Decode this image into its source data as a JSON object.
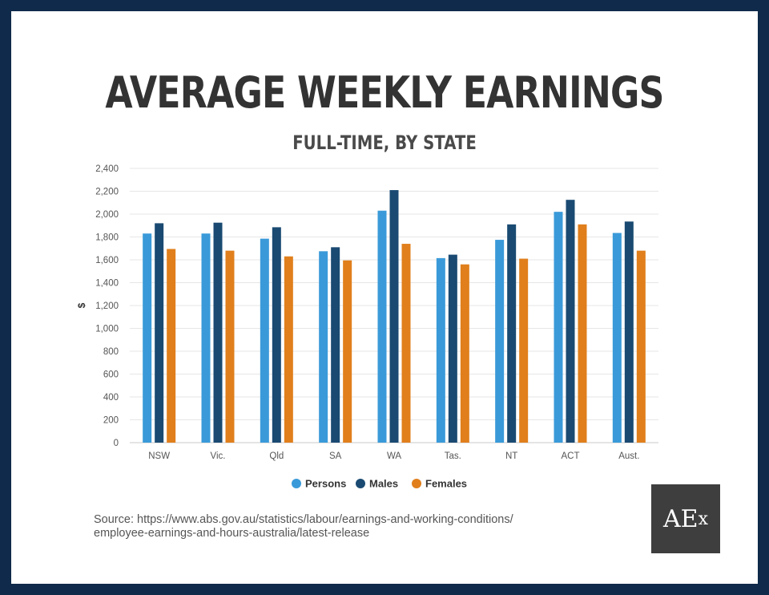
{
  "header": {
    "title": "AVERAGE WEEKLY EARNINGS",
    "subtitle": "FULL-TIME, BY STATE"
  },
  "source": {
    "line1": "Source: https://www.abs.gov.au/statistics/labour/earnings-and-working-conditions/",
    "line2": "employee-earnings-and-hours-australia/latest-release"
  },
  "logo": {
    "text_main": "AE",
    "text_small": "x"
  },
  "colors": {
    "frame": "#0f2a4a",
    "persons": "#3a9ad9",
    "males": "#1a4a72",
    "females": "#e07f1c"
  },
  "chart_data": {
    "type": "bar",
    "title": "AVERAGE WEEKLY EARNINGS",
    "subtitle": "FULL-TIME, BY STATE",
    "xlabel": "",
    "ylabel": "$",
    "ylim": [
      0,
      2400
    ],
    "yticks": [
      0,
      200,
      400,
      600,
      800,
      1000,
      1200,
      1400,
      1600,
      1800,
      2000,
      2200,
      2400
    ],
    "ytick_labels": [
      "0",
      "200",
      "400",
      "600",
      "800",
      "1,000",
      "1,200",
      "1,400",
      "1,600",
      "1,800",
      "2,000",
      "2,200",
      "2,400"
    ],
    "categories": [
      "NSW",
      "Vic.",
      "Qld",
      "SA",
      "WA",
      "Tas.",
      "NT",
      "ACT",
      "Aust."
    ],
    "series": [
      {
        "name": "Persons",
        "color": "#3a9ad9",
        "values": [
          1830,
          1830,
          1785,
          1675,
          2030,
          1615,
          1775,
          2020,
          1835
        ]
      },
      {
        "name": "Males",
        "color": "#1a4a72",
        "values": [
          1920,
          1925,
          1885,
          1710,
          2210,
          1645,
          1910,
          2125,
          1935
        ]
      },
      {
        "name": "Females",
        "color": "#e07f1c",
        "values": [
          1695,
          1680,
          1630,
          1595,
          1740,
          1560,
          1610,
          1910,
          1680
        ]
      }
    ],
    "grid": true,
    "legend_position": "bottom"
  }
}
